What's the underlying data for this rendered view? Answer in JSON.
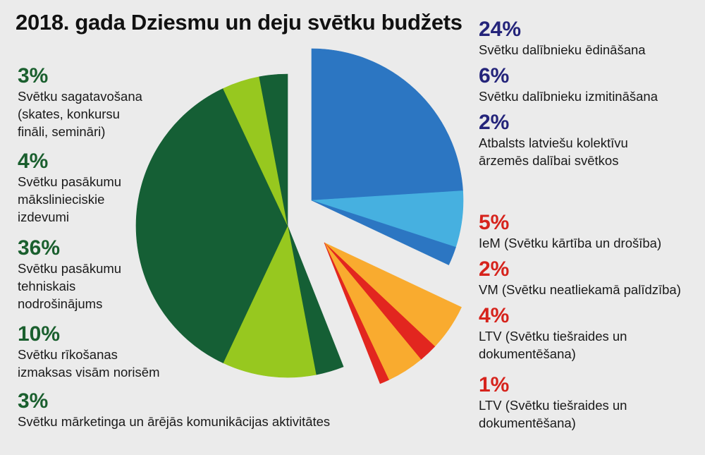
{
  "chart_data": {
    "type": "pie",
    "title": "2018. gada Dziesmu un deju svētku budžets",
    "slices": [
      {
        "value": 24,
        "label": "24%",
        "description": "Svētku dalībnieku ēdināšana",
        "color": "#2c76c2",
        "group": "blue"
      },
      {
        "value": 6,
        "label": "6%",
        "description": "Svētku dalībnieku izmitināšana",
        "color": "#46b0e0",
        "group": "blue"
      },
      {
        "value": 2,
        "label": "2%",
        "description": "Atbalsts latviešu kolektīvu\nārzemēs dalībai svētkos",
        "color": "#2c76c2",
        "group": "blue"
      },
      {
        "value": 5,
        "label": "5%",
        "description": "IeM (Svētku kārtība un drošība)",
        "color": "#f9ab2f",
        "group": "red"
      },
      {
        "value": 2,
        "label": "2%",
        "description": "VM (Svētku neatliekamā palīdzība)",
        "color": "#e2261f",
        "group": "red"
      },
      {
        "value": 4,
        "label": "4%",
        "description": "LTV (Svētku tiešraides un\ndokumentēšana)",
        "color": "#f9ab2f",
        "group": "red"
      },
      {
        "value": 1,
        "label": "1%",
        "description": "LTV (Svētku tiešraides un\ndokumentēšana)",
        "color": "#e2261f",
        "group": "red"
      },
      {
        "value": 3,
        "label": "3%",
        "description": "Svētku mārketinga un ārējās komunikācijas aktivitātes",
        "color": "#155f35",
        "group": "green"
      },
      {
        "value": 10,
        "label": "10%",
        "description": "Svētku rīkošanas\nizmaksas visām norisēm",
        "color": "#97c81f",
        "group": "green"
      },
      {
        "value": 36,
        "label": "36%",
        "description": "Svētku pasākumu\ntehniskais\nnodrošinājums",
        "color": "#155f35",
        "group": "green"
      },
      {
        "value": 4,
        "label": "4%",
        "description": "Svētku pasākumu\nmākslinieciskie\nizdevumi",
        "color": "#97c81f",
        "group": "green"
      },
      {
        "value": 3,
        "label": "3%",
        "description": "Svētku sagatavošana\n(skates, konkursu\nfināli, semināri)",
        "color": "#155f35",
        "group": "green"
      }
    ],
    "group_colors": {
      "blue": "#24247a",
      "red": "#d6231c",
      "green": "#1a5f2e"
    }
  }
}
